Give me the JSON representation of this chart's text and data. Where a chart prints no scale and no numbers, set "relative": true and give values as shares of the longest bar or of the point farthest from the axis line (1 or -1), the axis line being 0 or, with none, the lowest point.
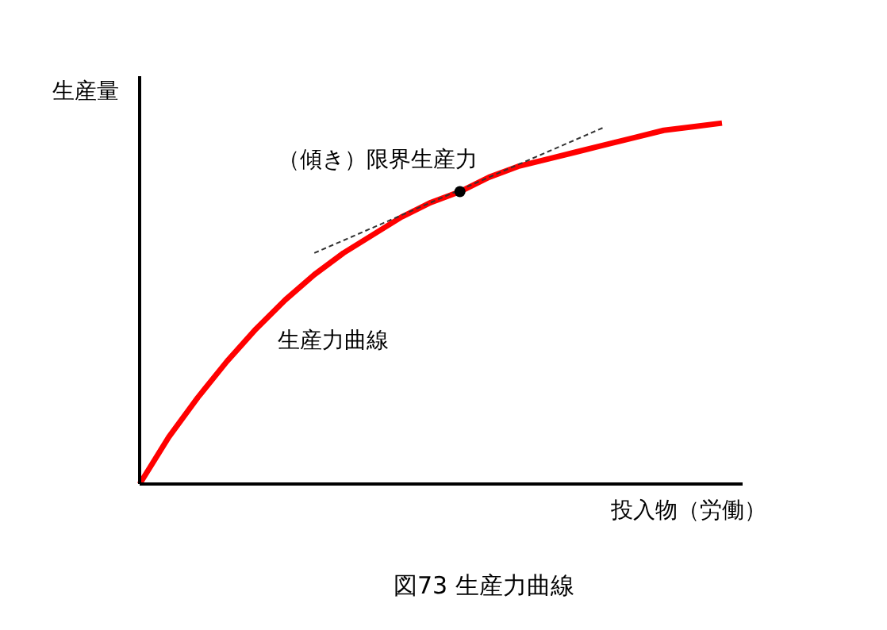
{
  "chart_data": {
    "type": "line",
    "title": "図73 生産力曲線",
    "xlabel": "投入物（労働）",
    "ylabel": "生産量",
    "relative": true,
    "marker": "none",
    "annotations": [
      "（傾き）限界生産力",
      "生産力曲線"
    ],
    "categories": [
      null,
      null,
      null,
      null,
      null,
      null,
      null,
      null,
      null,
      null,
      null,
      null,
      null,
      null,
      null,
      null,
      null,
      null,
      null,
      null,
      null
    ],
    "series": [
      {
        "color": "#ff0000",
        "values": [
          0,
          0.13,
          0.24,
          0.34,
          0.43,
          0.51,
          0.58,
          0.64,
          0.69,
          0.74,
          0.78,
          0.81,
          0.85,
          0.88,
          0.9,
          0.92,
          0.94,
          0.96,
          0.98,
          0.99,
          1
        ]
      },
      {
        "color": "#333333",
        "line_style": "dashed",
        "values": [
          null,
          null,
          null,
          null,
          null,
          null,
          0.64,
          null,
          null,
          null,
          null,
          null,
          null,
          null,
          null,
          null,
          0.99,
          null,
          null,
          null,
          null
        ]
      },
      {
        "color": "#000000",
        "marker": "circle",
        "values": [
          null,
          null,
          null,
          null,
          null,
          null,
          null,
          null,
          null,
          null,
          null,
          0.81,
          null,
          null,
          null,
          null,
          null,
          null,
          null,
          null,
          null
        ]
      }
    ]
  }
}
